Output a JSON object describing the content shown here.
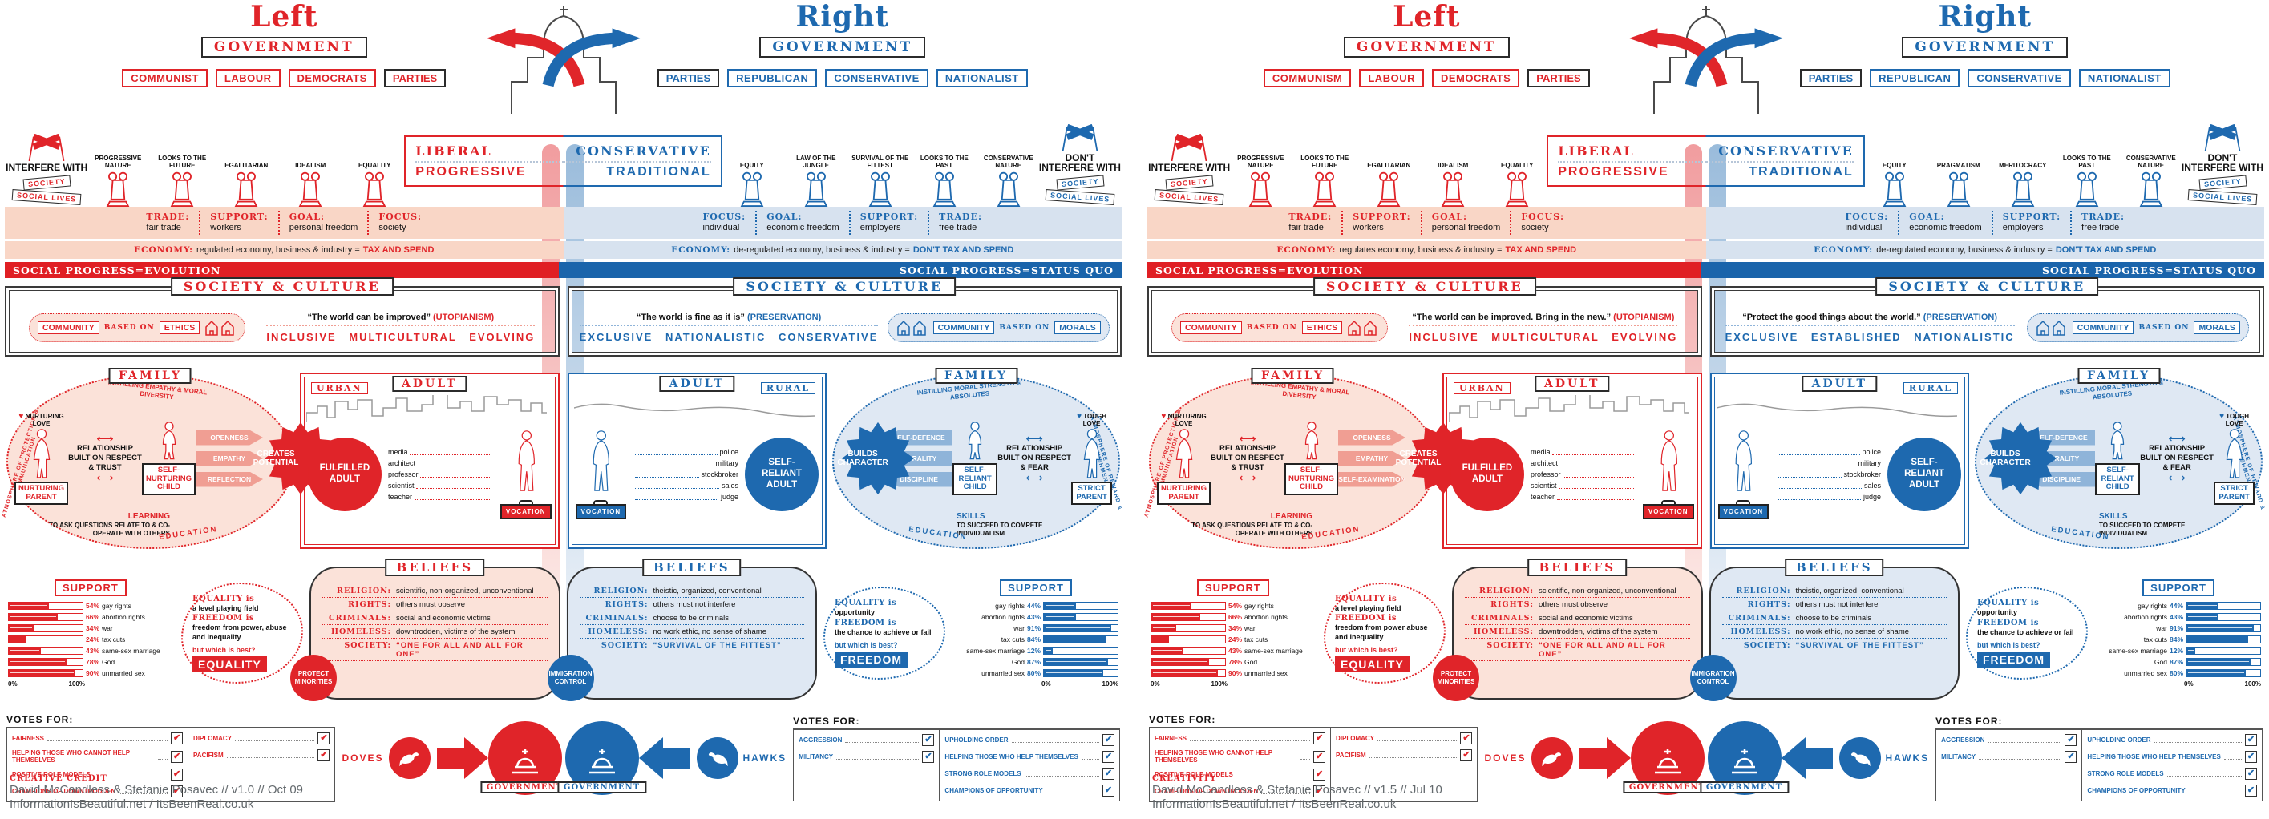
{
  "panels": [
    {
      "credit": {
        "label": "CREATIVE CREDIT",
        "byline": "David McCandless & Stefanie Posavec // v1.0 // Oct 09",
        "sites": "InformationIsBeautiful.net / ItsBeenReal.co.uk"
      },
      "left": {
        "title": "Left",
        "government": "GOVERNMENT",
        "parties_label": "PARTIES",
        "parties": [
          "COMMUNIST",
          "LABOUR",
          "DEMOCRATS"
        ],
        "pillars": [
          "PROGRESSIVE NATURE",
          "LOOKS TO THE FUTURE",
          "EGALITARIAN",
          "IDEALISM",
          "EQUALITY"
        ],
        "spectrum": {
          "top": "LIBERAL",
          "bottom": "PROGRESSIVE"
        },
        "flags": {
          "title": "INTERFERE WITH",
          "tag1": "SOCIETY",
          "tag2": "SOCIAL LIVES"
        },
        "policy": [
          {
            "k": "TRADE:",
            "v": "fair trade"
          },
          {
            "k": "SUPPORT:",
            "v": "workers"
          },
          {
            "k": "GOAL:",
            "v": "personal freedom"
          },
          {
            "k": "FOCUS:",
            "v": "society"
          }
        ],
        "economy": {
          "k": "ECONOMY:",
          "v": "regulated economy, business & industry =",
          "b": "TAX AND SPEND"
        },
        "progress": "SOCIAL PROGRESS=EVOLUTION",
        "society": {
          "banner": "SOCIETY & CULTURE",
          "community": "COMMUNITY",
          "based_on": "BASED ON",
          "basis": "ETHICS",
          "quote": "“The world can be improved”",
          "tag": "(UTOPIANISM)",
          "values": "INCLUSIVE MULTICULTURAL EVOLVING"
        },
        "family": {
          "banner": "FAMILY",
          "love": "NURTURING LOVE",
          "parent": "NURTURING PARENT",
          "relationship": "RELATIONSHIP BUILT ON RESPECT & TRUST",
          "child": "SELF-NURTURING CHILD",
          "instilling": "INSTILLING EMPATHY & MORAL DIVERSITY",
          "arrows": [
            "OPENNESS",
            "EMPATHY",
            "REFLECTION"
          ],
          "outcome": "CREATES POTENTIAL",
          "skills_title": "LEARNING",
          "skills_text": "TO ASK QUESTIONS RELATE TO & CO-OPERATE WITH OTHERS",
          "education": "EDUCATION",
          "atmosphere": "ATMOSPHERE OF PROTECTION & COMMUNICATION"
        },
        "adult": {
          "banner": "ADULT",
          "setting": "URBAN",
          "outcome": "FULFILLED ADULT",
          "vocation": "VOCATION",
          "professions": [
            "media",
            "architect",
            "professor",
            "scientist",
            "teacher"
          ]
        },
        "beliefs": {
          "banner": "BELIEFS",
          "items": [
            {
              "k": "RELIGION:",
              "v": "scientific, non-organized, unconventional"
            },
            {
              "k": "RIGHTS:",
              "v": "others must observe"
            },
            {
              "k": "CRIMINALS:",
              "v": "social and economic victims"
            },
            {
              "k": "HOMELESS:",
              "v": "downtrodden, victims of the system"
            },
            {
              "k": "SOCIETY:",
              "v": "“ONE FOR ALL AND ALL FOR ONE”"
            }
          ],
          "badge": "PROTECT MINORITIES"
        },
        "bubble": {
          "t1": "EQUALITY is",
          "d1": "a level playing field",
          "t2": "FREEDOM is",
          "d2": "freedom from power, abuse and inequality",
          "q": "but which is best?",
          "answer": "EQUALITY"
        },
        "support": {
          "label": "SUPPORT",
          "axis_min": "0%",
          "axis_max": "100%",
          "items": [
            {
              "pct": "54%",
              "label": "gay rights",
              "w": 54
            },
            {
              "pct": "66%",
              "label": "abortion rights",
              "w": 66
            },
            {
              "pct": "34%",
              "label": "war",
              "w": 34
            },
            {
              "pct": "24%",
              "label": "tax cuts",
              "w": 24
            },
            {
              "pct": "43%",
              "label": "same-sex marriage",
              "w": 43
            },
            {
              "pct": "78%",
              "label": "God",
              "w": 78
            },
            {
              "pct": "90%",
              "label": "unmarried sex",
              "w": 90
            }
          ]
        },
        "votes": {
          "title": "VOTES FOR:",
          "col1": [
            "FAIRNESS",
            "HELPING THOSE WHO CANNOT HELP THEMSELVES",
            "POSITIVE ROLE MODELS",
            "CHAMPIONS OF DOWNTRODDEN"
          ],
          "col2": [
            "DIPLOMACY",
            "PACIFISM"
          ],
          "mascot": "DOVES",
          "government": "GOVERNMENT"
        }
      },
      "right": {
        "title": "Right",
        "government": "GOVERNMENT",
        "parties_label": "PARTIES",
        "parties": [
          "REPUBLICAN",
          "CONSERVATIVE",
          "NATIONALIST"
        ],
        "pillars": [
          "EQUITY",
          "LAW OF THE JUNGLE",
          "SURVIVAL OF THE FITTEST",
          "LOOKS TO THE PAST",
          "CONSERVATIVE NATURE"
        ],
        "spectrum": {
          "top": "CONSERVATIVE",
          "bottom": "TRADITIONAL"
        },
        "flags": {
          "title": "DON'T INTERFERE WITH",
          "tag1": "SOCIETY",
          "tag2": "SOCIAL LIVES"
        },
        "policy": [
          {
            "k": "FOCUS:",
            "v": "individual"
          },
          {
            "k": "GOAL:",
            "v": "economic freedom"
          },
          {
            "k": "SUPPORT:",
            "v": "employers"
          },
          {
            "k": "TRADE:",
            "v": "free trade"
          }
        ],
        "economy": {
          "k": "ECONOMY:",
          "v": "de-regulated economy, business & industry =",
          "b": "DON'T TAX AND SPEND"
        },
        "progress": "SOCIAL PROGRESS=STATUS QUO",
        "society": {
          "banner": "SOCIETY & CULTURE",
          "community": "COMMUNITY",
          "based_on": "BASED ON",
          "basis": "MORALS",
          "quote": "“The world is fine as it is”",
          "tag": "(PRESERVATION)",
          "values": "EXCLUSIVE NATIONALISTIC CONSERVATIVE"
        },
        "family": {
          "banner": "FAMILY",
          "love": "TOUGH LOVE",
          "parent": "STRICT PARENT",
          "relationship": "RELATIONSHIP BUILT ON RESPECT & FEAR",
          "child": "SELF-RELIANT CHILD",
          "instilling": "INSTILLING MORAL STRENGTH & ABSOLUTES",
          "arrows": [
            "SELF-DEFENCE",
            "MORALITY",
            "DISCIPLINE"
          ],
          "outcome": "BUILDS CHARACTER",
          "skills_title": "SKILLS",
          "skills_text": "TO SUCCEED TO COMPETE INDIVIDUALISM",
          "education": "EDUCATION",
          "atmosphere": "ATMOSPHERE OF REWARD & PUNISHMENT"
        },
        "adult": {
          "banner": "ADULT",
          "setting": "RURAL",
          "outcome": "SELF-RELIANT ADULT",
          "vocation": "VOCATION",
          "professions": [
            "police",
            "military",
            "stockbroker",
            "sales",
            "judge"
          ]
        },
        "beliefs": {
          "banner": "BELIEFS",
          "items": [
            {
              "k": "RELIGION:",
              "v": "theistic, organized, conventional"
            },
            {
              "k": "RIGHTS:",
              "v": "others must not interfere"
            },
            {
              "k": "CRIMINALS:",
              "v": "choose to be criminals"
            },
            {
              "k": "HOMELESS:",
              "v": "no work ethic, no sense of shame"
            },
            {
              "k": "SOCIETY:",
              "v": "“SURVIVAL OF THE FITTEST”"
            }
          ],
          "badge": "IMMIGRATION CONTROL"
        },
        "bubble": {
          "t1": "EQUALITY is",
          "d1": "opportunity",
          "t2": "FREEDOM is",
          "d2": "the chance to achieve or fail",
          "q": "but which is best?",
          "answer": "FREEDOM"
        },
        "support": {
          "label": "SUPPORT",
          "axis_min": "0%",
          "axis_max": "100%",
          "items": [
            {
              "pct": "44%",
              "label": "gay rights",
              "w": 44
            },
            {
              "pct": "43%",
              "label": "abortion rights",
              "w": 43
            },
            {
              "pct": "91%",
              "label": "war",
              "w": 91
            },
            {
              "pct": "84%",
              "label": "tax cuts",
              "w": 84
            },
            {
              "pct": "12%",
              "label": "same-sex marriage",
              "w": 12
            },
            {
              "pct": "87%",
              "label": "God",
              "w": 87
            },
            {
              "pct": "80%",
              "label": "unmarried sex",
              "w": 80
            }
          ]
        },
        "votes": {
          "title": "VOTES FOR:",
          "col1": [
            "AGGRESSION",
            "MILITANCY"
          ],
          "col2": [
            "UPHOLDING ORDER",
            "HELPING THOSE WHO HELP THEMSELVES",
            "STRONG ROLE MODELS",
            "CHAMPIONS OF OPPORTUNITY"
          ],
          "mascot": "HAWKS",
          "government": "GOVERNMENT"
        }
      }
    },
    {
      "credit": {
        "label": "CREATIVITY",
        "byline": "David McCandless & Stefanie Posavec // v1.5 // Jul 10",
        "sites": "InformationIsBeautiful.net / ItsBeenReal.co.uk"
      },
      "left": {
        "title": "Left",
        "government": "GOVERNMENT",
        "parties_label": "PARTIES",
        "parties": [
          "COMMUNISM",
          "LABOUR",
          "DEMOCRATS"
        ],
        "pillars": [
          "PROGRESSIVE NATURE",
          "LOOKS TO THE FUTURE",
          "EGALITARIAN",
          "IDEALISM",
          "EQUALITY"
        ],
        "spectrum": {
          "top": "LIBERAL",
          "bottom": "PROGRESSIVE"
        },
        "flags": {
          "title": "INTERFERE WITH",
          "tag1": "SOCIETY",
          "tag2": "SOCIAL LIVES"
        },
        "policy": [
          {
            "k": "TRADE:",
            "v": "fair trade"
          },
          {
            "k": "SUPPORT:",
            "v": "workers"
          },
          {
            "k": "GOAL:",
            "v": "personal freedom"
          },
          {
            "k": "FOCUS:",
            "v": "society"
          }
        ],
        "economy": {
          "k": "ECONOMY:",
          "v": "regulates economy, business & industry =",
          "b": "TAX AND SPEND"
        },
        "progress": "SOCIAL PROGRESS=EVOLUTION",
        "society": {
          "banner": "SOCIETY & CULTURE",
          "community": "COMMUNITY",
          "based_on": "BASED ON",
          "basis": "ETHICS",
          "quote": "“The world can be improved. Bring in the new.”",
          "tag": "(UTOPIANISM)",
          "values": "INCLUSIVE MULTICULTURAL EVOLVING"
        },
        "family": {
          "banner": "FAMILY",
          "love": "NURTURING LOVE",
          "parent": "NURTURING PARENT",
          "relationship": "RELATIONSHIP BUILT ON RESPECT & TRUST",
          "child": "SELF-NURTURING CHILD",
          "instilling": "INSTILLING EMPATHY & MORAL DIVERSITY",
          "arrows": [
            "OPENNESS",
            "EMPATHY",
            "SELF-EXAMINATION"
          ],
          "outcome": "CREATES POTENTIAL",
          "skills_title": "LEARNING",
          "skills_text": "TO ASK QUESTIONS RELATE TO & CO-OPERATE WITH OTHERS",
          "education": "EDUCATION",
          "atmosphere": "ATMOSPHERE OF PROTECTION & COMMUNICATION"
        },
        "adult": {
          "banner": "ADULT",
          "setting": "URBAN",
          "outcome": "FULFILLED ADULT",
          "vocation": "VOCATION",
          "professions": [
            "media",
            "architect",
            "professor",
            "scientist",
            "teacher"
          ]
        },
        "beliefs": {
          "banner": "BELIEFS",
          "items": [
            {
              "k": "RELIGION:",
              "v": "scientific, non-organized, unconventional"
            },
            {
              "k": "RIGHTS:",
              "v": "others must observe"
            },
            {
              "k": "CRIMINALS:",
              "v": "social and economic victims"
            },
            {
              "k": "HOMELESS:",
              "v": "downtrodden, victims of the system"
            },
            {
              "k": "SOCIETY:",
              "v": "“ONE FOR ALL AND ALL FOR ONE”"
            }
          ],
          "badge": "PROTECT MINORITIES"
        },
        "bubble": {
          "t1": "EQUALITY is",
          "d1": "a level playing field",
          "t2": "FREEDOM is",
          "d2": "freedom from power abuse and inequality",
          "q": "but which is best?",
          "answer": "EQUALITY"
        },
        "support": {
          "label": "SUPPORT",
          "axis_min": "0%",
          "axis_max": "100%",
          "items": [
            {
              "pct": "54%",
              "label": "gay rights",
              "w": 54
            },
            {
              "pct": "66%",
              "label": "abortion rights",
              "w": 66
            },
            {
              "pct": "34%",
              "label": "war",
              "w": 34
            },
            {
              "pct": "24%",
              "label": "tax cuts",
              "w": 24
            },
            {
              "pct": "43%",
              "label": "same-sex marriage",
              "w": 43
            },
            {
              "pct": "78%",
              "label": "God",
              "w": 78
            },
            {
              "pct": "90%",
              "label": "unmarried sex",
              "w": 90
            }
          ]
        },
        "votes": {
          "title": "VOTES FOR:",
          "col1": [
            "FAIRNESS",
            "HELPING THOSE WHO CANNOT HELP THEMSELVES",
            "POSITIVE ROLE MODELS",
            "CHAMPIONS OF DOWNTRODDEN"
          ],
          "col2": [
            "DIPLOMACY",
            "PACIFISM"
          ],
          "mascot": "DOVES",
          "government": "GOVERNMENT"
        }
      },
      "right": {
        "title": "Right",
        "government": "GOVERNMENT",
        "parties_label": "PARTIES",
        "parties": [
          "REPUBLICAN",
          "CONSERVATIVE",
          "NATIONALIST"
        ],
        "pillars": [
          "EQUITY",
          "PRAGMATISM",
          "MERITOCRACY",
          "LOOKS TO THE PAST",
          "CONSERVATIVE NATURE"
        ],
        "spectrum": {
          "top": "CONSERVATIVE",
          "bottom": "TRADITIONAL"
        },
        "flags": {
          "title": "DON'T INTERFERE WITH",
          "tag1": "SOCIETY",
          "tag2": "SOCIAL LIVES"
        },
        "policy": [
          {
            "k": "FOCUS:",
            "v": "individual"
          },
          {
            "k": "GOAL:",
            "v": "economic freedom"
          },
          {
            "k": "SUPPORT:",
            "v": "employers"
          },
          {
            "k": "TRADE:",
            "v": "free trade"
          }
        ],
        "economy": {
          "k": "ECONOMY:",
          "v": "de-regulated economy, business & industry =",
          "b": "DON'T TAX AND SPEND"
        },
        "progress": "SOCIAL PROGRESS=STATUS QUO",
        "society": {
          "banner": "SOCIETY & CULTURE",
          "community": "COMMUNITY",
          "based_on": "BASED ON",
          "basis": "MORALS",
          "quote": "“Protect the good things about the world.”",
          "tag": "(PRESERVATION)",
          "values": "EXCLUSIVE ESTABLISHED NATIONALISTIC"
        },
        "family": {
          "banner": "FAMILY",
          "love": "TOUGH LOVE",
          "parent": "STRICT PARENT",
          "relationship": "RELATIONSHIP BUILT ON RESPECT & FEAR",
          "child": "SELF-RELIANT CHILD",
          "instilling": "INSTILLING MORAL STRENGTH & ABSOLUTES",
          "arrows": [
            "SELF-DEFENCE",
            "MORALITY",
            "DISCIPLINE"
          ],
          "outcome": "BUILDS CHARACTER",
          "skills_title": "SKILLS",
          "skills_text": "TO SUCCEED TO COMPETE INDIVIDUALISM",
          "education": "EDUCATION",
          "atmosphere": "ATMOSPHERE OF REWARD & PUNISHMENT"
        },
        "adult": {
          "banner": "ADULT",
          "setting": "RURAL",
          "outcome": "SELF-RELIANT ADULT",
          "vocation": "VOCATION",
          "professions": [
            "police",
            "military",
            "stockbroker",
            "sales",
            "judge"
          ]
        },
        "beliefs": {
          "banner": "BELIEFS",
          "items": [
            {
              "k": "RELIGION:",
              "v": "theistic, organized, conventional"
            },
            {
              "k": "RIGHTS:",
              "v": "others must not interfere"
            },
            {
              "k": "CRIMINALS:",
              "v": "choose to be criminals"
            },
            {
              "k": "HOMELESS:",
              "v": "no work ethic, no sense of shame"
            },
            {
              "k": "SOCIETY:",
              "v": "“SURVIVAL OF THE FITTEST”"
            }
          ],
          "badge": "IMMIGRATION CONTROL"
        },
        "bubble": {
          "t1": "EQUALITY is",
          "d1": "opportunity",
          "t2": "FREEDOM is",
          "d2": "the chance to achieve or fail",
          "q": "but which is best?",
          "answer": "FREEDOM"
        },
        "support": {
          "label": "SUPPORT",
          "axis_min": "0%",
          "axis_max": "100%",
          "items": [
            {
              "pct": "44%",
              "label": "gay rights",
              "w": 44
            },
            {
              "pct": "43%",
              "label": "abortion rights",
              "w": 43
            },
            {
              "pct": "91%",
              "label": "war",
              "w": 91
            },
            {
              "pct": "84%",
              "label": "tax cuts",
              "w": 84
            },
            {
              "pct": "12%",
              "label": "same-sex marriage",
              "w": 12
            },
            {
              "pct": "87%",
              "label": "God",
              "w": 87
            },
            {
              "pct": "80%",
              "label": "unmarried sex",
              "w": 80
            }
          ]
        },
        "votes": {
          "title": "VOTES FOR:",
          "col1": [
            "AGGRESSION",
            "MILITANCY"
          ],
          "col2": [
            "UPHOLDING ORDER",
            "HELPING THOSE WHO HELP THEMSELVES",
            "STRONG ROLE MODELS",
            "CHAMPIONS OF OPPORTUNITY"
          ],
          "mascot": "HAWKS",
          "government": "GOVERNMENT"
        }
      }
    }
  ]
}
